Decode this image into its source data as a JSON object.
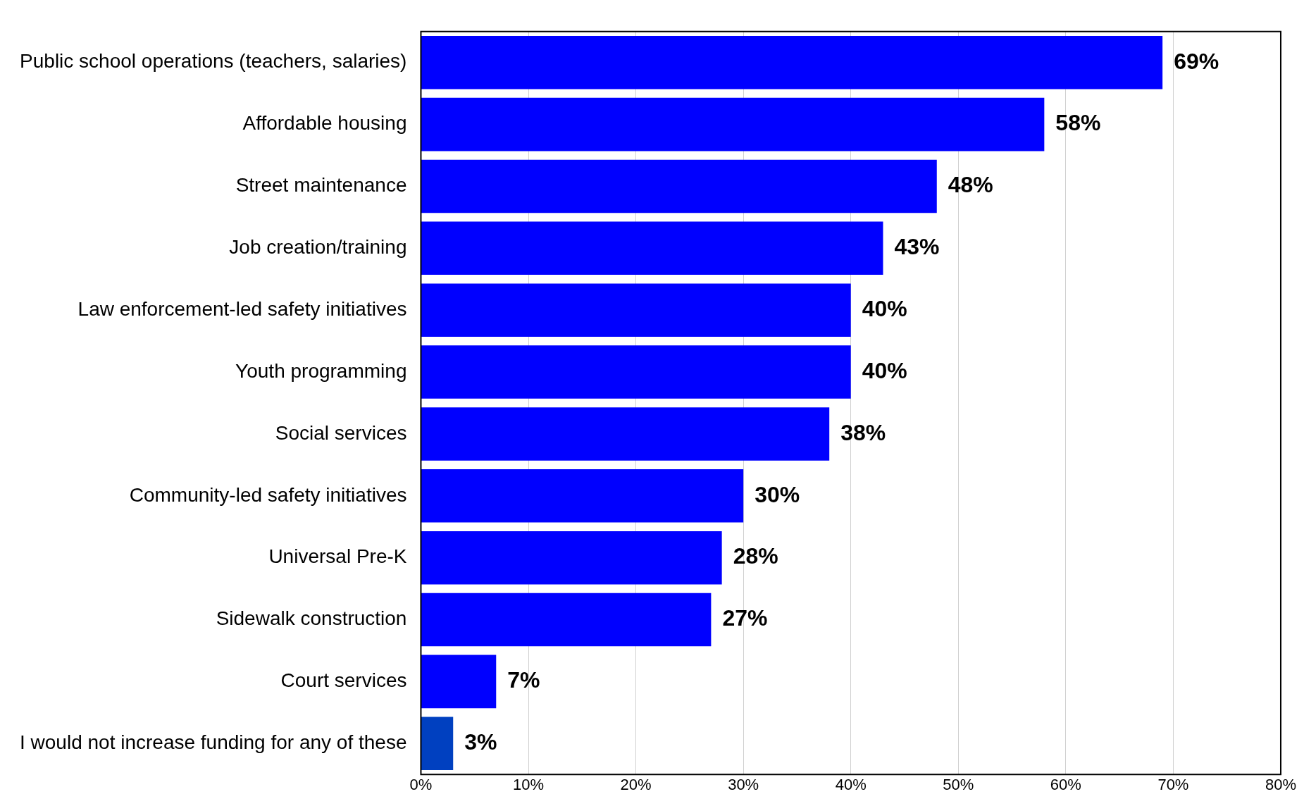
{
  "chart_data": {
    "type": "bar",
    "orientation": "horizontal",
    "categories": [
      "Public school operations (teachers, salaries)",
      "Affordable housing",
      "Street maintenance",
      "Job creation/training",
      "Law enforcement-led safety initiatives",
      "Youth programming",
      "Social services",
      "Community-led safety initiatives",
      "Universal Pre-K",
      "Sidewalk construction",
      "Court services",
      "I would not increase funding for any of these"
    ],
    "values": [
      69,
      58,
      48,
      43,
      40,
      40,
      38,
      30,
      28,
      27,
      7,
      3
    ],
    "value_labels": [
      "69%",
      "58%",
      "48%",
      "43%",
      "40%",
      "40%",
      "38%",
      "30%",
      "28%",
      "27%",
      "7%",
      "3%"
    ],
    "colors": [
      "#0000ff",
      "#0000ff",
      "#0000ff",
      "#0000ff",
      "#0000ff",
      "#0000ff",
      "#0000ff",
      "#0000ff",
      "#0000ff",
      "#0000ff",
      "#0000ff",
      "#0040c0"
    ],
    "xlim": [
      0,
      80
    ],
    "xticks": [
      {
        "value": 0,
        "label": "0%"
      },
      {
        "value": 10,
        "label": "10%"
      },
      {
        "value": 20,
        "label": "20%"
      },
      {
        "value": 30,
        "label": "30%"
      },
      {
        "value": 40,
        "label": "40%"
      },
      {
        "value": 50,
        "label": "50%"
      },
      {
        "value": 60,
        "label": "60%"
      },
      {
        "value": 70,
        "label": "70%"
      },
      {
        "value": 80,
        "label": "80%"
      }
    ],
    "grid": "x",
    "legend": false
  }
}
